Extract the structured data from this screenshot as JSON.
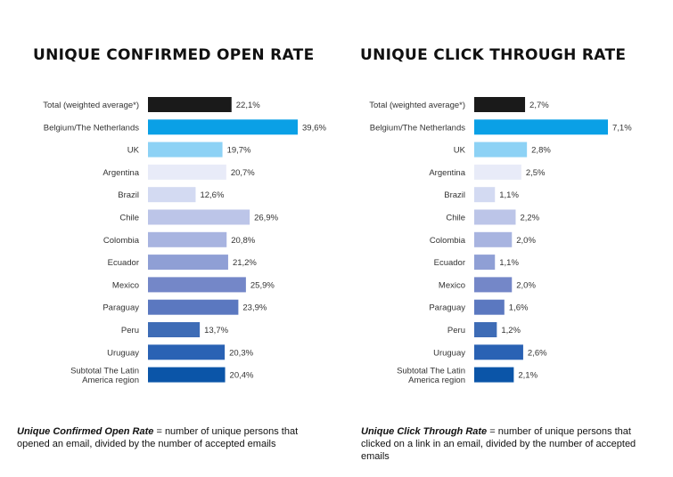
{
  "chart_data": [
    {
      "type": "bar",
      "orientation": "horizontal",
      "title": "UNIQUE CONFIRMED OPEN RATE",
      "categories": [
        "Total (weighted average*)",
        "Belgium/The Netherlands",
        "UK",
        "Argentina",
        "Brazil",
        "Chile",
        "Colombia",
        "Ecuador",
        "Mexico",
        "Paraguay",
        "Peru",
        "Uruguay",
        "Subtotal The Latin America region"
      ],
      "values": [
        22.1,
        39.6,
        19.7,
        20.7,
        12.6,
        26.9,
        20.8,
        21.2,
        25.9,
        23.9,
        13.7,
        20.3,
        20.4
      ],
      "value_labels": [
        "22,1%",
        "39,6%",
        "19,7%",
        "20,7%",
        "12,6%",
        "26,9%",
        "20,8%",
        "21,2%",
        "25,9%",
        "23,9%",
        "13,7%",
        "20,3%",
        "20,4%"
      ],
      "xlim": [
        0,
        39.6
      ],
      "colors": [
        "#1a1a1a",
        "#0aa0e6",
        "#8dd2f5",
        "#e8ebf8",
        "#d3daf2",
        "#bcc5e8",
        "#a8b4e0",
        "#8f9fd5",
        "#7487c8",
        "#5b78c0",
        "#3e6cb6",
        "#2a62b4",
        "#0b55a8"
      ],
      "grid": false,
      "legend": "none"
    },
    {
      "type": "bar",
      "orientation": "horizontal",
      "title": "UNIQUE CLICK THROUGH RATE",
      "categories": [
        "Total (weighted average*)",
        "Belgium/The Netherlands",
        "UK",
        "Argentina",
        "Brazil",
        "Chile",
        "Colombia",
        "Ecuador",
        "Mexico",
        "Paraguay",
        "Peru",
        "Uruguay",
        "Subtotal The Latin America region"
      ],
      "values": [
        2.7,
        7.1,
        2.8,
        2.5,
        1.1,
        2.2,
        2.0,
        1.1,
        2.0,
        1.6,
        1.2,
        2.6,
        2.1
      ],
      "value_labels": [
        "2,7%",
        "7,1%",
        "2,8%",
        "2,5%",
        "1,1%",
        "2,2%",
        "2,0%",
        "1,1%",
        "2,0%",
        "1,6%",
        "1,2%",
        "2,6%",
        "2,1%"
      ],
      "xlim": [
        0,
        7.1
      ],
      "colors": [
        "#1a1a1a",
        "#0aa0e6",
        "#8dd2f5",
        "#e8ebf8",
        "#d3daf2",
        "#bcc5e8",
        "#a8b4e0",
        "#8f9fd5",
        "#7487c8",
        "#5b78c0",
        "#3e6cb6",
        "#2a62b4",
        "#0b55a8"
      ],
      "grid": false,
      "legend": "none"
    }
  ],
  "notes": {
    "left_term": "Unique Confirmed Open Rate",
    "left_text": " = number of unique persons that opened an email, divided by the number of accepted emails",
    "right_term": "Unique Click Through Rate",
    "right_text": " = number of unique persons that clicked on a link in an email, divided by the number of accepted emails"
  }
}
